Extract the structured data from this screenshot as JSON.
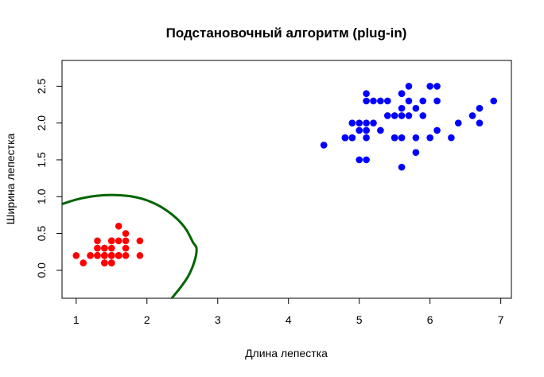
{
  "chart_data": {
    "type": "scatter",
    "title": "Подстановочный алгоритм (plug-in)",
    "xlabel": "Длина лепестка",
    "ylabel": "Ширина лепестка",
    "xlim": [
      0.8,
      7.15
    ],
    "ylim": [
      -0.38,
      2.85
    ],
    "xticks": [
      "1",
      "2",
      "3",
      "4",
      "5",
      "6",
      "7"
    ],
    "yticks": [
      "0.0",
      "0.5",
      "1.0",
      "1.5",
      "2.0",
      "2.5"
    ],
    "grid": false,
    "legend": "none",
    "series": [
      {
        "color": "#ff0000",
        "points": [
          [
            1.4,
            0.2
          ],
          [
            1.4,
            0.2
          ],
          [
            1.3,
            0.2
          ],
          [
            1.5,
            0.2
          ],
          [
            1.4,
            0.2
          ],
          [
            1.7,
            0.4
          ],
          [
            1.4,
            0.3
          ],
          [
            1.5,
            0.2
          ],
          [
            1.4,
            0.2
          ],
          [
            1.5,
            0.1
          ],
          [
            1.5,
            0.2
          ],
          [
            1.6,
            0.2
          ],
          [
            1.4,
            0.1
          ],
          [
            1.1,
            0.1
          ],
          [
            1.2,
            0.2
          ],
          [
            1.5,
            0.4
          ],
          [
            1.3,
            0.4
          ],
          [
            1.4,
            0.3
          ],
          [
            1.7,
            0.3
          ],
          [
            1.5,
            0.3
          ],
          [
            1.7,
            0.2
          ],
          [
            1.5,
            0.4
          ],
          [
            1.0,
            0.2
          ],
          [
            1.7,
            0.5
          ],
          [
            1.9,
            0.2
          ],
          [
            1.6,
            0.2
          ],
          [
            1.6,
            0.4
          ],
          [
            1.5,
            0.2
          ],
          [
            1.4,
            0.2
          ],
          [
            1.6,
            0.2
          ],
          [
            1.6,
            0.2
          ],
          [
            1.5,
            0.4
          ],
          [
            1.5,
            0.1
          ],
          [
            1.4,
            0.2
          ],
          [
            1.5,
            0.2
          ],
          [
            1.2,
            0.2
          ],
          [
            1.3,
            0.2
          ],
          [
            1.4,
            0.1
          ],
          [
            1.3,
            0.2
          ],
          [
            1.5,
            0.2
          ],
          [
            1.3,
            0.3
          ],
          [
            1.3,
            0.3
          ],
          [
            1.3,
            0.2
          ],
          [
            1.6,
            0.6
          ],
          [
            1.9,
            0.4
          ],
          [
            1.4,
            0.3
          ],
          [
            1.6,
            0.2
          ],
          [
            1.4,
            0.2
          ],
          [
            1.5,
            0.2
          ],
          [
            1.4,
            0.2
          ]
        ]
      },
      {
        "color": "#0000ff",
        "points": [
          [
            6.0,
            2.5
          ],
          [
            5.1,
            1.9
          ],
          [
            5.9,
            2.1
          ],
          [
            5.6,
            1.8
          ],
          [
            5.8,
            2.2
          ],
          [
            6.6,
            2.1
          ],
          [
            4.5,
            1.7
          ],
          [
            6.3,
            1.8
          ],
          [
            5.8,
            1.8
          ],
          [
            6.1,
            2.5
          ],
          [
            5.1,
            2.0
          ],
          [
            5.3,
            1.9
          ],
          [
            5.5,
            2.1
          ],
          [
            5.0,
            2.0
          ],
          [
            5.1,
            2.4
          ],
          [
            5.3,
            2.3
          ],
          [
            5.5,
            1.8
          ],
          [
            6.7,
            2.2
          ],
          [
            6.9,
            2.3
          ],
          [
            5.0,
            1.5
          ],
          [
            5.7,
            2.3
          ],
          [
            4.9,
            2.0
          ],
          [
            6.7,
            2.0
          ],
          [
            4.9,
            1.8
          ],
          [
            5.7,
            2.1
          ],
          [
            6.0,
            1.8
          ],
          [
            4.8,
            1.8
          ],
          [
            4.9,
            1.8
          ],
          [
            5.6,
            2.1
          ],
          [
            5.8,
            1.6
          ],
          [
            6.1,
            1.9
          ],
          [
            6.4,
            2.0
          ],
          [
            5.6,
            2.2
          ],
          [
            5.1,
            1.5
          ],
          [
            5.6,
            1.4
          ],
          [
            6.1,
            2.3
          ],
          [
            5.6,
            2.4
          ],
          [
            5.5,
            1.8
          ],
          [
            4.8,
            1.8
          ],
          [
            5.4,
            2.1
          ],
          [
            5.6,
            2.4
          ],
          [
            5.1,
            2.3
          ],
          [
            5.1,
            1.9
          ],
          [
            5.9,
            2.3
          ],
          [
            5.7,
            2.5
          ],
          [
            5.2,
            2.3
          ],
          [
            5.0,
            1.9
          ],
          [
            5.2,
            2.0
          ],
          [
            5.4,
            2.3
          ],
          [
            5.1,
            1.8
          ]
        ]
      }
    ],
    "boundary": {
      "color": "#006400",
      "points": [
        [
          0.8,
          0.9
        ],
        [
          1.0,
          0.96
        ],
        [
          1.2,
          1.0
        ],
        [
          1.4,
          1.02
        ],
        [
          1.6,
          1.02
        ],
        [
          1.8,
          1.0
        ],
        [
          2.0,
          0.95
        ],
        [
          2.2,
          0.86
        ],
        [
          2.4,
          0.72
        ],
        [
          2.55,
          0.56
        ],
        [
          2.65,
          0.38
        ],
        [
          2.7,
          0.3
        ],
        [
          2.68,
          0.15
        ],
        [
          2.6,
          -0.05
        ],
        [
          2.5,
          -0.2
        ],
        [
          2.35,
          -0.38
        ]
      ]
    }
  }
}
